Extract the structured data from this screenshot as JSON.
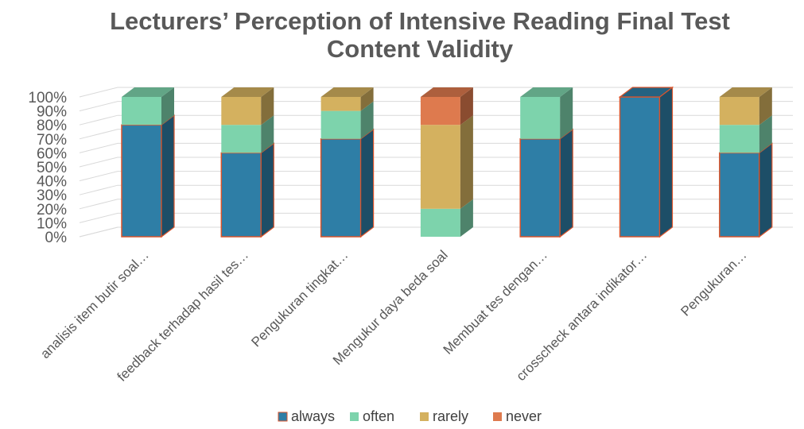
{
  "chart_data": {
    "type": "bar",
    "stacked": "percent",
    "three_d": true,
    "title": "Lecturers’ Perception of Intensive Reading Final Test Content Validity",
    "title_lines": [
      "Lecturers’ Perception of Intensive Reading Final Test",
      "Content Validity"
    ],
    "categories": [
      "analisis item butir soal…",
      "feedback terhadap hasil tes…",
      "Pengukuran tingkat…",
      "Mengukur daya beda soal",
      "Membuat tes dengan…",
      "crosscheck antara indikator…",
      "Pengukuran…"
    ],
    "series": [
      {
        "name": "always",
        "color": "#2e7ea6",
        "values": [
          80,
          60,
          70,
          0,
          70,
          100,
          60
        ]
      },
      {
        "name": "often",
        "color": "#7dd3ac",
        "values": [
          20,
          20,
          20,
          20,
          30,
          0,
          20
        ]
      },
      {
        "name": "rarely",
        "color": "#d4b15f",
        "values": [
          0,
          20,
          10,
          60,
          0,
          0,
          20
        ]
      },
      {
        "name": "never",
        "color": "#de7a4e",
        "values": [
          0,
          0,
          0,
          20,
          0,
          0,
          0
        ]
      }
    ],
    "ylim": [
      0,
      100
    ],
    "y_ticks": [
      "0%",
      "10%",
      "20%",
      "30%",
      "40%",
      "50%",
      "60%",
      "70%",
      "80%",
      "90%",
      "100%"
    ],
    "grid": true,
    "legend_position": "bottom",
    "xlabel": "",
    "ylabel": ""
  }
}
